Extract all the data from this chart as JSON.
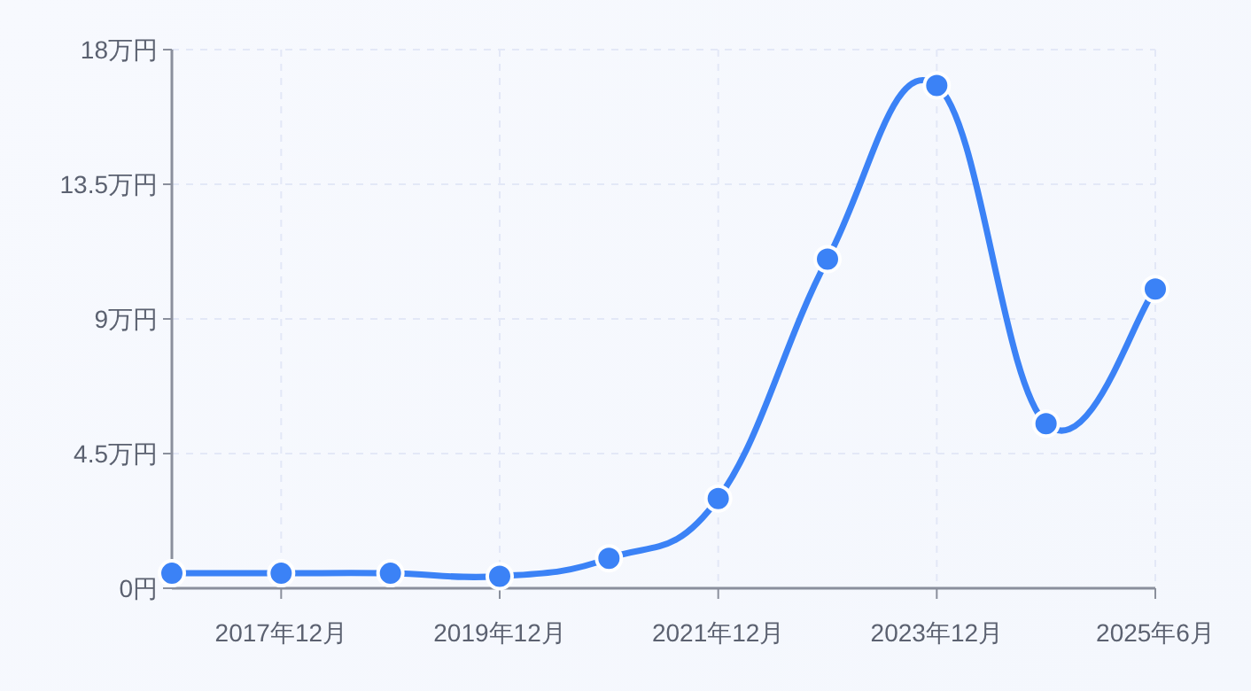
{
  "chart_data": {
    "type": "line",
    "categories": [
      null,
      "2017年12月",
      null,
      "2019年12月",
      null,
      "2021年12月",
      null,
      "2023年12月",
      null,
      "2025年6月"
    ],
    "series": [
      {
        "color": "#3b82f6",
        "values": [
          0.5,
          0.5,
          0.5,
          0.4,
          1.0,
          3.0,
          11.0,
          16.8,
          5.5,
          10.0
        ]
      }
    ],
    "ylim": [
      0,
      18
    ],
    "yticks": [
      {
        "value": 0,
        "label": "0円"
      },
      {
        "value": 4.5,
        "label": "4.5万円"
      },
      {
        "value": 9,
        "label": "9万円"
      },
      {
        "value": 13.5,
        "label": "13.5万円"
      },
      {
        "value": 18,
        "label": "18万円"
      }
    ],
    "grid": true,
    "marker": "circle"
  }
}
